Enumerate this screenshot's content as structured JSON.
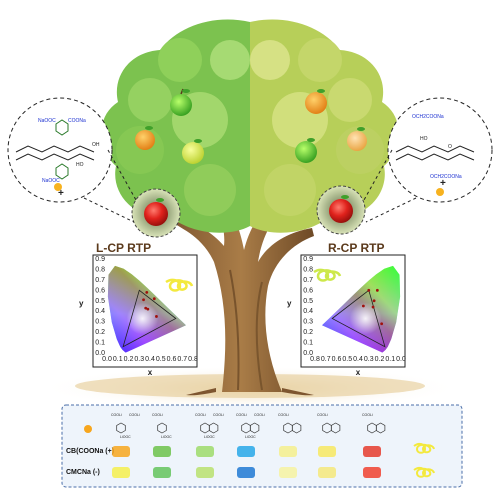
{
  "panels": {
    "left_title": "L-CP RTP",
    "right_title": "R-CP RTP"
  },
  "left_molecule": {
    "labels": [
      "NaOOC",
      "COONa",
      "NaOOC",
      "HO",
      "OH"
    ]
  },
  "right_molecule": {
    "labels": [
      "OCH2COONa",
      "OCH2COONa",
      "HO",
      "O"
    ]
  },
  "plus_sign": "+",
  "chart_data": [
    {
      "type": "scatter",
      "subtype": "CIE 1931 chromaticity diagram",
      "title": "L-CP RTP",
      "xlabel": "x",
      "ylabel": "y",
      "xlim": [
        0.0,
        0.8
      ],
      "ylim": [
        0.0,
        0.9
      ],
      "x_ticks": [
        "0.0",
        "0.1",
        "0.2",
        "0.3",
        "0.4",
        "0.5",
        "0.6",
        "0.7",
        "0.8"
      ],
      "y_ticks": [
        "0.0",
        "0.1",
        "0.2",
        "0.3",
        "0.4",
        "0.5",
        "0.6",
        "0.7",
        "0.8",
        "0.9"
      ],
      "points": [
        {
          "x": 0.37,
          "y": 0.58
        },
        {
          "x": 0.44,
          "y": 0.52
        },
        {
          "x": 0.34,
          "y": 0.51
        },
        {
          "x": 0.36,
          "y": 0.43
        },
        {
          "x": 0.38,
          "y": 0.42
        },
        {
          "x": 0.46,
          "y": 0.35
        }
      ]
    },
    {
      "type": "scatter",
      "subtype": "CIE 1931 chromaticity diagram (mirrored)",
      "title": "R-CP RTP",
      "xlabel": "x",
      "ylabel": "y",
      "xlim": [
        0.8,
        0.0
      ],
      "ylim": [
        0.0,
        0.9
      ],
      "x_ticks": [
        "0.8",
        "0.7",
        "0.6",
        "0.5",
        "0.4",
        "0.3",
        "0.2",
        "0.1",
        "0.0"
      ],
      "y_ticks": [
        "0.0",
        "0.1",
        "0.2",
        "0.3",
        "0.4",
        "0.5",
        "0.6",
        "0.7",
        "0.8",
        "0.9"
      ],
      "points": [
        {
          "x": 0.3,
          "y": 0.6
        },
        {
          "x": 0.22,
          "y": 0.6
        },
        {
          "x": 0.25,
          "y": 0.5
        },
        {
          "x": 0.35,
          "y": 0.45
        },
        {
          "x": 0.26,
          "y": 0.44
        },
        {
          "x": 0.18,
          "y": 0.28
        }
      ]
    }
  ],
  "legend": {
    "rows": [
      {
        "name": "CB(COONa (+)",
        "colors": [
          "#f7a61d",
          "#6cc24a",
          "#9edb6a",
          "#27a7e7",
          "#f4ee8c",
          "#f7e860",
          "#e53b2d"
        ]
      },
      {
        "name": "CMCNa (-)",
        "colors": [
          "#f4ee4c",
          "#63c35c",
          "#b9e06d",
          "#1e78d2",
          "#f6f2a0",
          "#f4e87a",
          "#f0412f"
        ]
      }
    ],
    "molecule_labels": [
      [
        "COOLi",
        "LiOOC",
        "COOLi"
      ],
      [
        "COOLi",
        "LiOOC"
      ],
      [
        "COOLi",
        "LiOOC",
        "COOLi"
      ],
      [
        "COOLi",
        "LiOOC",
        "COOLi"
      ],
      [
        "COOLi"
      ],
      [
        "COOLi"
      ],
      [
        "COOLi"
      ]
    ]
  },
  "colors": {
    "tree_left": "#7cc24f",
    "tree_right": "#b9cf59",
    "trunk": "#9a6f40",
    "ground": "#f2e3c2"
  }
}
